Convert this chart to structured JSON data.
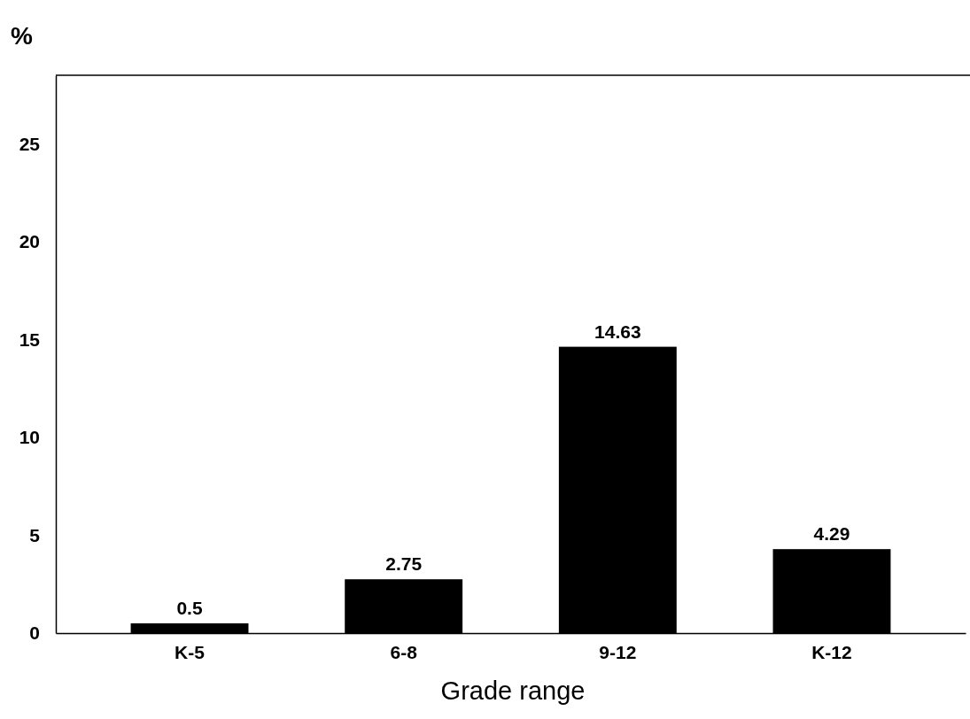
{
  "chart_data": {
    "type": "bar",
    "xlabel": "Grade range",
    "ylabel": "%",
    "categories": [
      "K-5",
      "6-8",
      "9-12",
      "K-12"
    ],
    "values": [
      0.5,
      2.75,
      14.63,
      4.29
    ],
    "color": "#000000",
    "ylim": [
      0,
      28.5
    ],
    "yticks": [
      0,
      5,
      10,
      15,
      20,
      25
    ],
    "data_labels": true
  }
}
